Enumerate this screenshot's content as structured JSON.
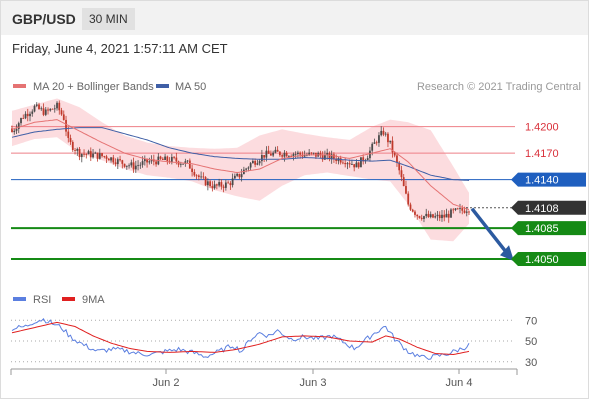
{
  "header": {
    "pair": "GBP/USD",
    "timeframe": "30 MIN"
  },
  "timestamp": "Friday, June 4, 2021 1:57:11 AM CET",
  "legend": {
    "ma20": "MA 20 + Bollinger Bands",
    "ma50": "MA 50",
    "credit": "Research © 2021 Trading Central",
    "rsi": "RSI",
    "rsi_ma": "9MA"
  },
  "colors": {
    "candle_up": "#4a4a4a",
    "candle_down": "#c0392b",
    "ma20": "#e57373",
    "ma50": "#3f5fa6",
    "band_fill": "#fbd0d4",
    "resistance": "#ee7f86",
    "pivot": "#1f5fbf",
    "support": "#158a15",
    "last_price": "#333333",
    "arrow": "#2c5aa0",
    "rsi": "#5b7fe0",
    "rsi_ma": "#e02020"
  },
  "chart_data": [
    {
      "type": "line",
      "title": "GBP/USD",
      "timeframe": "30 MIN",
      "x_ticks": [
        "Jun 2",
        "Jun 3",
        "Jun 4"
      ],
      "ylim": [
        1.4025,
        1.4245
      ],
      "levels": [
        {
          "label": "1.4200",
          "value": 1.42,
          "kind": "resistance"
        },
        {
          "label": "1.4170",
          "value": 1.417,
          "kind": "resistance"
        },
        {
          "label": "1.4140",
          "value": 1.414,
          "kind": "pivot"
        },
        {
          "label": "1.4085",
          "value": 1.4085,
          "kind": "support"
        },
        {
          "label": "1.4050",
          "value": 1.405,
          "kind": "support"
        }
      ],
      "last_price": {
        "label": "1.4108",
        "value": 1.4108
      },
      "series_anchors": {
        "close": [
          [
            0,
            1.4194
          ],
          [
            5,
            1.4212
          ],
          [
            10,
            1.4222
          ],
          [
            15,
            1.4216
          ],
          [
            20,
            1.4223
          ],
          [
            23,
            1.421
          ],
          [
            25,
            1.4183
          ],
          [
            30,
            1.417
          ],
          [
            36,
            1.4168
          ],
          [
            42,
            1.4166
          ],
          [
            48,
            1.416
          ],
          [
            54,
            1.4155
          ],
          [
            60,
            1.416
          ],
          [
            66,
            1.4162
          ],
          [
            72,
            1.4162
          ],
          [
            78,
            1.4158
          ],
          [
            84,
            1.414
          ],
          [
            90,
            1.4132
          ],
          [
            96,
            1.4135
          ],
          [
            101,
            1.4145
          ],
          [
            106,
            1.4158
          ],
          [
            112,
            1.4168
          ],
          [
            118,
            1.417
          ],
          [
            124,
            1.417
          ],
          [
            130,
            1.4168
          ],
          [
            136,
            1.4168
          ],
          [
            142,
            1.4165
          ],
          [
            148,
            1.4162
          ],
          [
            153,
            1.4156
          ],
          [
            158,
            1.4168
          ],
          [
            162,
            1.4185
          ],
          [
            165,
            1.4194
          ],
          [
            168,
            1.418
          ],
          [
            172,
            1.415
          ],
          [
            176,
            1.4112
          ],
          [
            180,
            1.41
          ],
          [
            186,
            1.4097
          ],
          [
            192,
            1.4098
          ],
          [
            196,
            1.4103
          ],
          [
            200,
            1.4105
          ],
          [
            203,
            1.4108
          ]
        ],
        "ma20": [
          [
            0,
            1.4197
          ],
          [
            10,
            1.4205
          ],
          [
            20,
            1.4208
          ],
          [
            30,
            1.4195
          ],
          [
            40,
            1.4182
          ],
          [
            50,
            1.417
          ],
          [
            60,
            1.4163
          ],
          [
            70,
            1.416
          ],
          [
            80,
            1.4158
          ],
          [
            90,
            1.4152
          ],
          [
            100,
            1.4148
          ],
          [
            110,
            1.4152
          ],
          [
            120,
            1.4164
          ],
          [
            130,
            1.4168
          ],
          [
            140,
            1.4168
          ],
          [
            150,
            1.4164
          ],
          [
            160,
            1.417
          ],
          [
            168,
            1.4175
          ],
          [
            176,
            1.416
          ],
          [
            186,
            1.4133
          ],
          [
            196,
            1.4112
          ],
          [
            203,
            1.4106
          ]
        ],
        "ma50": [
          [
            0,
            1.4188
          ],
          [
            10,
            1.4194
          ],
          [
            20,
            1.4197
          ],
          [
            30,
            1.4199
          ],
          [
            40,
            1.4199
          ],
          [
            50,
            1.4192
          ],
          [
            60,
            1.4185
          ],
          [
            70,
            1.4176
          ],
          [
            80,
            1.417
          ],
          [
            90,
            1.4166
          ],
          [
            100,
            1.4164
          ],
          [
            110,
            1.4163
          ],
          [
            120,
            1.4163
          ],
          [
            130,
            1.4165
          ],
          [
            140,
            1.4164
          ],
          [
            150,
            1.4162
          ],
          [
            160,
            1.4161
          ],
          [
            168,
            1.4162
          ],
          [
            176,
            1.4155
          ],
          [
            186,
            1.4145
          ],
          [
            196,
            1.414
          ],
          [
            203,
            1.4139
          ]
        ],
        "bb_upper": [
          [
            0,
            1.4218
          ],
          [
            10,
            1.4225
          ],
          [
            20,
            1.4232
          ],
          [
            30,
            1.4222
          ],
          [
            40,
            1.4205
          ],
          [
            50,
            1.419
          ],
          [
            60,
            1.4182
          ],
          [
            70,
            1.4178
          ],
          [
            80,
            1.4176
          ],
          [
            90,
            1.4175
          ],
          [
            100,
            1.4176
          ],
          [
            110,
            1.419
          ],
          [
            120,
            1.4197
          ],
          [
            130,
            1.4192
          ],
          [
            140,
            1.4188
          ],
          [
            150,
            1.4185
          ],
          [
            160,
            1.42
          ],
          [
            168,
            1.4208
          ],
          [
            176,
            1.4205
          ],
          [
            186,
            1.4196
          ],
          [
            196,
            1.4155
          ],
          [
            203,
            1.4125
          ]
        ],
        "bb_lower": [
          [
            0,
            1.4178
          ],
          [
            10,
            1.4186
          ],
          [
            20,
            1.4188
          ],
          [
            30,
            1.417
          ],
          [
            40,
            1.4162
          ],
          [
            50,
            1.4152
          ],
          [
            60,
            1.4145
          ],
          [
            70,
            1.4142
          ],
          [
            80,
            1.4138
          ],
          [
            90,
            1.4128
          ],
          [
            100,
            1.4121
          ],
          [
            110,
            1.4116
          ],
          [
            120,
            1.4133
          ],
          [
            130,
            1.4145
          ],
          [
            140,
            1.4148
          ],
          [
            150,
            1.4144
          ],
          [
            160,
            1.414
          ],
          [
            168,
            1.4138
          ],
          [
            176,
            1.4112
          ],
          [
            186,
            1.4072
          ],
          [
            196,
            1.407
          ],
          [
            203,
            1.409
          ]
        ]
      },
      "forecast_arrow": {
        "from": 1.4107,
        "to": 1.4052
      }
    },
    {
      "type": "line",
      "title": "RSI",
      "ylim": [
        24,
        78
      ],
      "y_ticks": [
        70,
        50,
        30
      ],
      "series": [
        {
          "name": "RSI",
          "anchors": [
            [
              0,
              62
            ],
            [
              6,
              64
            ],
            [
              10,
              69
            ],
            [
              14,
              71
            ],
            [
              18,
              67
            ],
            [
              22,
              63
            ],
            [
              26,
              54
            ],
            [
              32,
              46
            ],
            [
              38,
              40
            ],
            [
              44,
              42
            ],
            [
              50,
              41
            ],
            [
              56,
              38
            ],
            [
              62,
              37
            ],
            [
              68,
              40
            ],
            [
              74,
              42
            ],
            [
              80,
              39
            ],
            [
              86,
              35
            ],
            [
              92,
              40
            ],
            [
              98,
              46
            ],
            [
              102,
              40
            ],
            [
              106,
              52
            ],
            [
              110,
              58
            ],
            [
              114,
              55
            ],
            [
              118,
              60
            ],
            [
              124,
              52
            ],
            [
              130,
              54
            ],
            [
              136,
              52
            ],
            [
              142,
              55
            ],
            [
              148,
              48
            ],
            [
              152,
              43
            ],
            [
              156,
              49
            ],
            [
              160,
              56
            ],
            [
              164,
              62
            ],
            [
              166,
              64
            ],
            [
              170,
              52
            ],
            [
              176,
              40
            ],
            [
              182,
              34
            ],
            [
              188,
              35
            ],
            [
              194,
              38
            ],
            [
              200,
              43
            ],
            [
              203,
              46
            ]
          ]
        },
        {
          "name": "9MA",
          "anchors": [
            [
              0,
              58
            ],
            [
              10,
              63
            ],
            [
              20,
              68
            ],
            [
              28,
              64
            ],
            [
              36,
              55
            ],
            [
              44,
              48
            ],
            [
              52,
              43
            ],
            [
              60,
              40
            ],
            [
              70,
              39
            ],
            [
              80,
              40
            ],
            [
              90,
              39
            ],
            [
              100,
              42
            ],
            [
              110,
              47
            ],
            [
              120,
              54
            ],
            [
              130,
              55
            ],
            [
              140,
              54
            ],
            [
              150,
              50
            ],
            [
              160,
              49
            ],
            [
              166,
              55
            ],
            [
              172,
              52
            ],
            [
              180,
              44
            ],
            [
              188,
              38
            ],
            [
              196,
              37
            ],
            [
              203,
              40
            ]
          ]
        }
      ]
    }
  ]
}
